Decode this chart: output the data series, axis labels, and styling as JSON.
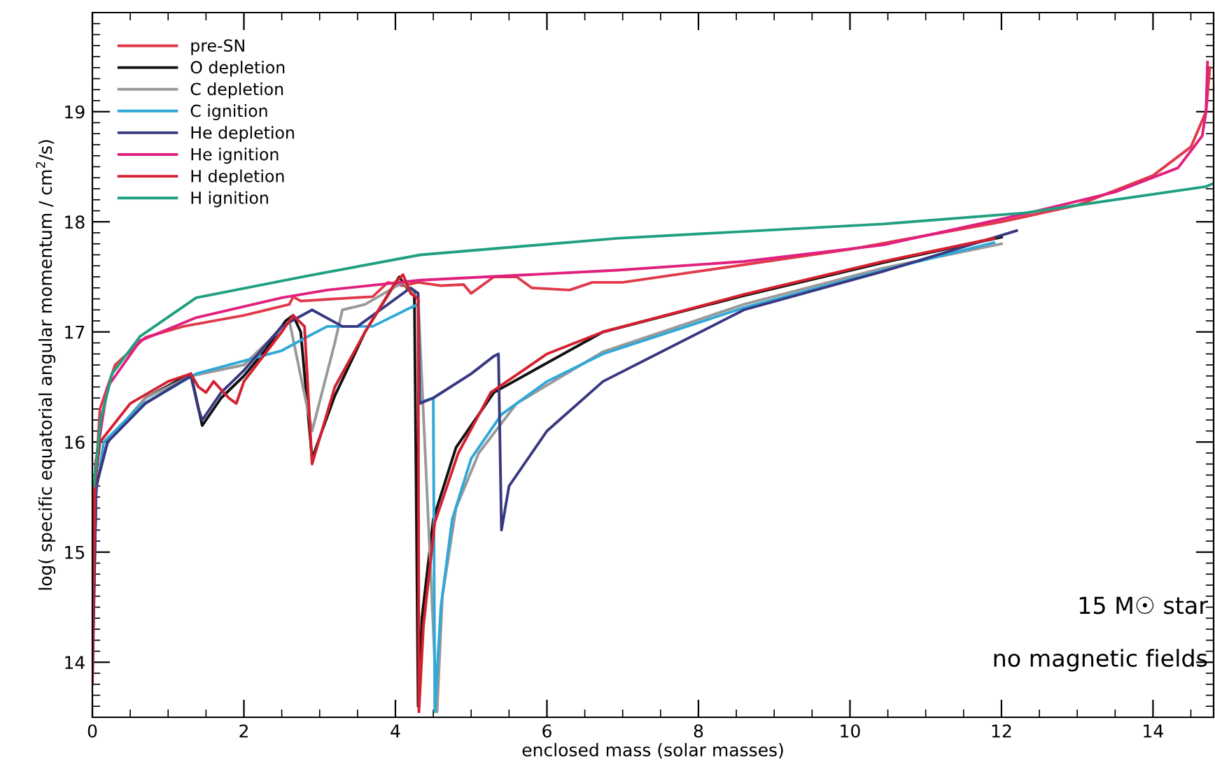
{
  "chart_data": {
    "type": "line",
    "xlabel": "enclosed mass (solar masses)",
    "ylabel": "log( specific equatorial angular momentum / cm$^{2}$/s)",
    "xlim": [
      0,
      14.8
    ],
    "ylim": [
      13.5,
      19.9
    ],
    "xticks": [
      0,
      2,
      4,
      6,
      8,
      10,
      12,
      14
    ],
    "yticks": [
      14,
      15,
      16,
      17,
      18,
      19
    ],
    "grid": false,
    "legend": "top left",
    "line_style": "solid",
    "marker": "none",
    "annotations": [
      "15 M☉ star",
      "no magnetic fields"
    ],
    "series": [
      {
        "name": "pre-SN",
        "color": "#e03a4a",
        "x": [
          0,
          0.03,
          0.1,
          0.3,
          0.7,
          1.2,
          2.0,
          2.6,
          2.65,
          2.75,
          3.2,
          3.7,
          3.9,
          4.1,
          4.3,
          4.6,
          4.9,
          5.0,
          5.3,
          5.6,
          5.8,
          6.3,
          6.6,
          7.0,
          8,
          10,
          12,
          13,
          14,
          14.5,
          14.7,
          14.75
        ],
        "values": [
          14.0,
          15.5,
          16.3,
          16.7,
          16.95,
          17.05,
          17.15,
          17.25,
          17.32,
          17.28,
          17.3,
          17.32,
          17.45,
          17.42,
          17.45,
          17.42,
          17.43,
          17.35,
          17.5,
          17.5,
          17.4,
          17.38,
          17.45,
          17.45,
          17.55,
          17.75,
          18.0,
          18.15,
          18.42,
          18.68,
          19.0,
          19.4
        ]
      },
      {
        "name": "O depletion",
        "color": "#111111",
        "x": [
          0,
          0.05,
          0.2,
          0.7,
          1.3,
          1.45,
          1.7,
          2.0,
          2.3,
          2.55,
          2.65,
          2.75,
          2.9,
          3.2,
          3.6,
          4.05,
          4.15,
          4.25,
          4.3,
          4.35,
          4.5,
          4.8,
          5.3,
          6.74,
          8.6,
          10.44,
          12.0
        ],
        "values": [
          14.0,
          15.6,
          16.0,
          16.4,
          16.62,
          16.15,
          16.4,
          16.6,
          16.85,
          17.1,
          17.15,
          17.0,
          15.85,
          16.42,
          17.0,
          17.5,
          17.4,
          17.35,
          13.6,
          14.4,
          15.3,
          15.95,
          16.45,
          17.0,
          17.33,
          17.63,
          17.86
        ]
      },
      {
        "name": "C depletion",
        "color": "#999999",
        "x": [
          0,
          0.05,
          0.2,
          0.7,
          1.3,
          2.0,
          2.6,
          2.9,
          3.2,
          3.3,
          3.6,
          4.1,
          4.3,
          4.55,
          4.62,
          4.8,
          5.1,
          5.6,
          6.74,
          8.6,
          10.44,
          12.0
        ],
        "values": [
          14.0,
          15.6,
          16.0,
          16.4,
          16.6,
          16.7,
          17.1,
          16.1,
          16.9,
          17.2,
          17.25,
          17.45,
          17.3,
          13.55,
          14.6,
          15.4,
          15.9,
          16.35,
          16.82,
          17.25,
          17.58,
          17.8
        ]
      },
      {
        "name": "C ignition",
        "color": "#30a8d8",
        "x": [
          0,
          0.04,
          0.15,
          0.63,
          1.37,
          2.5,
          2.85,
          3.1,
          3.7,
          4.2,
          4.3,
          4.32,
          4.5,
          4.52,
          4.6,
          4.75,
          5.0,
          5.4,
          6.0,
          6.74,
          8.6,
          10.44,
          11.9
        ],
        "values": [
          14.4,
          15.5,
          16.0,
          16.33,
          16.62,
          16.83,
          16.96,
          17.05,
          17.05,
          17.22,
          17.25,
          16.36,
          16.4,
          13.55,
          14.5,
          15.3,
          15.85,
          16.25,
          16.55,
          16.8,
          17.22,
          17.56,
          17.81
        ]
      },
      {
        "name": "He depletion",
        "color": "#383880",
        "x": [
          0,
          0.05,
          0.2,
          0.7,
          1.3,
          1.4,
          1.45,
          1.7,
          2.0,
          2.5,
          2.9,
          3.3,
          3.5,
          4.2,
          4.3,
          4.32,
          4.5,
          5.0,
          5.3,
          5.36,
          5.4,
          5.5,
          6.0,
          6.74,
          8.6,
          10.44,
          12.2
        ],
        "values": [
          13.8,
          15.6,
          16.0,
          16.35,
          16.6,
          16.3,
          16.2,
          16.45,
          16.65,
          17.05,
          17.2,
          17.05,
          17.05,
          17.4,
          17.35,
          16.35,
          16.4,
          16.62,
          16.78,
          16.8,
          15.2,
          15.6,
          16.1,
          16.55,
          17.2,
          17.55,
          17.92
        ]
      },
      {
        "name": "He ignition",
        "color": "#e0207f",
        "x": [
          0,
          0.04,
          0.2,
          0.63,
          1.37,
          2.5,
          3.1,
          4.33,
          6.93,
          8.6,
          10.44,
          12.3,
          13.5,
          14.33,
          14.65,
          14.7,
          14.72
        ],
        "values": [
          14.2,
          15.8,
          16.5,
          16.92,
          17.13,
          17.31,
          17.38,
          17.47,
          17.56,
          17.64,
          17.79,
          18.07,
          18.27,
          18.49,
          18.78,
          19.0,
          19.45
        ]
      },
      {
        "name": "H depletion",
        "color": "#d42030",
        "x": [
          0,
          0.03,
          0.1,
          0.5,
          1.0,
          1.3,
          1.4,
          1.5,
          1.6,
          1.8,
          1.9,
          2.0,
          2.5,
          2.65,
          2.8,
          2.9,
          3.2,
          3.6,
          4.0,
          4.1,
          4.2,
          4.3,
          4.31,
          4.37,
          4.52,
          4.83,
          5.26,
          6.0,
          6.74,
          8.6,
          10.44,
          11.9
        ],
        "values": [
          13.8,
          15.6,
          16.0,
          16.35,
          16.55,
          16.62,
          16.5,
          16.45,
          16.55,
          16.4,
          16.35,
          16.55,
          17.0,
          17.15,
          17.05,
          15.8,
          16.5,
          17.0,
          17.45,
          17.52,
          17.35,
          17.3,
          13.55,
          14.33,
          15.27,
          15.9,
          16.45,
          16.8,
          17.0,
          17.34,
          17.64,
          17.85
        ]
      },
      {
        "name": "H ignition",
        "color": "#20a080",
        "x": [
          0.02,
          0.11,
          0.26,
          0.63,
          1.37,
          2.85,
          4.33,
          6.93,
          10.44,
          12.3,
          14.7,
          14.8
        ],
        "values": [
          15.6,
          16.2,
          16.62,
          16.96,
          17.31,
          17.51,
          17.7,
          17.85,
          17.98,
          18.08,
          18.32,
          18.35
        ]
      }
    ]
  }
}
